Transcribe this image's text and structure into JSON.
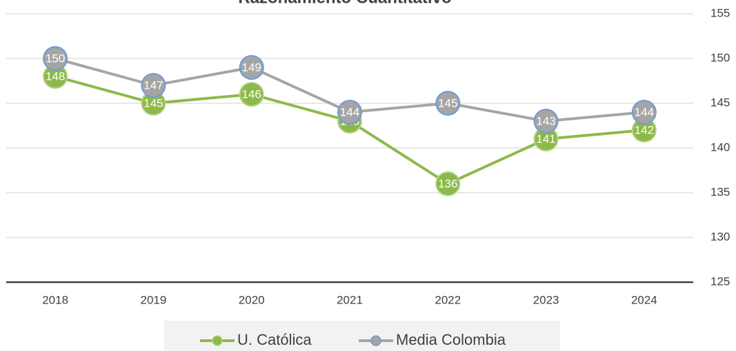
{
  "chart_data": {
    "type": "line",
    "title": "Razonamiento Cuantitativo",
    "categories": [
      "2018",
      "2019",
      "2020",
      "2021",
      "2022",
      "2023",
      "2024"
    ],
    "series": [
      {
        "name": "U. Católica",
        "color": "#8db94a",
        "values": [
          148,
          145,
          146,
          143,
          136,
          141,
          142
        ]
      },
      {
        "name": "Media Colombia",
        "color": "#a5a5a5",
        "values": [
          150,
          147,
          149,
          144,
          145,
          143,
          144
        ]
      }
    ],
    "ylim": [
      125,
      155
    ],
    "yticks": [
      125,
      130,
      135,
      140,
      145,
      150,
      155
    ],
    "grid": true,
    "legend": "bottom"
  }
}
